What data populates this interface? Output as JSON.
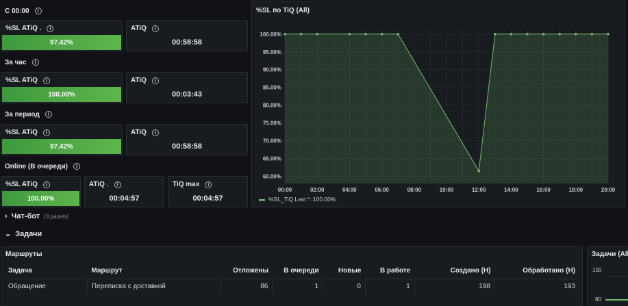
{
  "sections": {
    "since_midnight": "С 00:00",
    "per_hour": "За час",
    "per_period": "За период",
    "online": "Online (В очереди)"
  },
  "stat_panels": {
    "p1_sl_title": "%SL ATiQ .",
    "p1_sl_value": "97.42%",
    "p1_atiq_title": "ATiQ",
    "p1_atiq_value": "00:58:58",
    "p2_sl_title": "%SL ATiQ",
    "p2_sl_value": "100.00%",
    "p2_atiq_title": "ATiQ",
    "p2_atiq_value": "00:03:43",
    "p3_sl_title": "%SL ATiQ",
    "p3_sl_value": "97.42%",
    "p3_atiq_title": "ATiQ",
    "p3_atiq_value": "00:58:58",
    "p4_sl_title": "%SL ATiQ",
    "p4_sl_value": "100.00%",
    "p4_atiq_title": "ATiQ .",
    "p4_atiq_value": "00:04:57",
    "p4_tiq_title": "TiQ max",
    "p4_tiq_value": "00:04:57"
  },
  "colors": {
    "accent_green": "#73bf69",
    "bar_green": "#56a64b"
  },
  "chart_data": {
    "type": "area",
    "title": "%SL по TiQ (All)",
    "x": [
      "00:00",
      "01:00",
      "02:00",
      "04:00",
      "05:00",
      "06:00",
      "07:00",
      "12:00",
      "13:00",
      "14:00",
      "15:00",
      "16:00",
      "17:00",
      "18:00",
      "19:00",
      "20:00"
    ],
    "x_hours": [
      0,
      1,
      2,
      4,
      5,
      6,
      7,
      12,
      13,
      14,
      15,
      16,
      17,
      18,
      19,
      20
    ],
    "xticks": [
      "00:00",
      "02:00",
      "04:00",
      "06:00",
      "08:00",
      "10:00",
      "12:00",
      "14:00",
      "16:00",
      "18:00",
      "20:00"
    ],
    "yticks": [
      "100.00%",
      "95.00%",
      "90.00%",
      "85.00%",
      "80.00%",
      "75.00%",
      "70.00%",
      "65.00%",
      "60.00%"
    ],
    "ylim": [
      58,
      101.5
    ],
    "series": [
      {
        "name": "%SL_TiQ",
        "values": [
          100,
          100,
          100,
          100,
          100,
          100,
          100,
          61.5,
          100,
          100,
          100,
          100,
          100,
          100,
          100,
          100
        ]
      }
    ],
    "legend": "%SL_TiQ  Last *: 100.00%",
    "legend_position": "bottom-left"
  },
  "collapsed_rows": [
    {
      "label": "Чат-бот",
      "count": "(3 panels)",
      "arrow": "›"
    },
    {
      "label": "Задачи",
      "arrow": "⌄"
    }
  ],
  "routes_panel": {
    "title": "Маршруты",
    "headers": [
      "Задача",
      "Маршрут",
      "Отложены",
      "В очереди",
      "Новые",
      "В работе",
      "Создано (Н)",
      "Обработано (Н)"
    ],
    "rows": [
      [
        "Обращение",
        "Переписка с доставкой",
        "86",
        "1",
        "0",
        "1",
        "198",
        "193"
      ]
    ]
  },
  "tasks_panel": {
    "title": "Задачи (All)",
    "yticks": [
      "100",
      "80"
    ]
  }
}
